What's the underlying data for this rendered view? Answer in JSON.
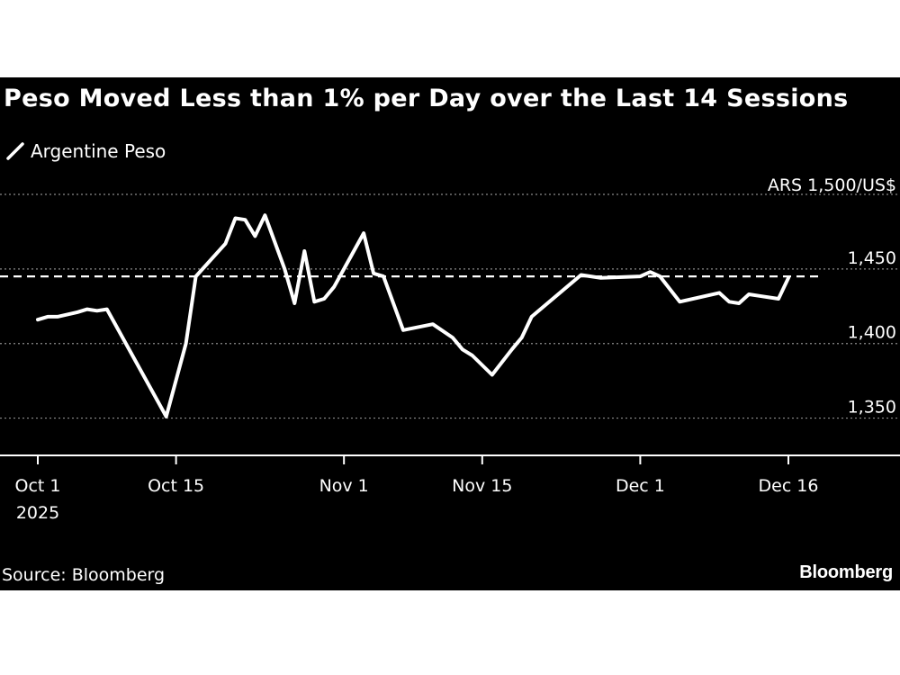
{
  "chart_data": {
    "type": "line",
    "title": "Peso Moved Less than 1% per Day over the Last 14 Sessions",
    "legend": [
      "Argentine Peso"
    ],
    "y_unit_label": "ARS 1,500/US$",
    "ylim": [
      1325,
      1500
    ],
    "y_ticks": [
      {
        "value": 1450,
        "label": "1,450"
      },
      {
        "value": 1400,
        "label": "1,400"
      },
      {
        "value": 1350,
        "label": "1,350"
      }
    ],
    "x_start": "2025-10-01",
    "x_end": "2025-12-16",
    "x_ticks": [
      {
        "day": 0,
        "label": "Oct 1",
        "sublabel": "2025"
      },
      {
        "day": 14,
        "label": "Oct 15",
        "sublabel": ""
      },
      {
        "day": 31,
        "label": "Nov 1",
        "sublabel": ""
      },
      {
        "day": 45,
        "label": "Nov 15",
        "sublabel": ""
      },
      {
        "day": 61,
        "label": "Dec 1",
        "sublabel": ""
      },
      {
        "day": 76,
        "label": "Dec 16",
        "sublabel": ""
      }
    ],
    "reference_line": {
      "value": 1445
    },
    "series": [
      {
        "name": "Argentine Peso",
        "points": [
          [
            0,
            1416
          ],
          [
            1,
            1418
          ],
          [
            2,
            1418
          ],
          [
            4,
            1421
          ],
          [
            5,
            1423
          ],
          [
            6,
            1422
          ],
          [
            7,
            1423
          ],
          [
            13,
            1351
          ],
          [
            15,
            1400
          ],
          [
            16,
            1445
          ],
          [
            19,
            1467
          ],
          [
            20,
            1484
          ],
          [
            21,
            1483
          ],
          [
            22,
            1472
          ],
          [
            23,
            1486
          ],
          [
            25,
            1450
          ],
          [
            26,
            1427
          ],
          [
            27,
            1462
          ],
          [
            28,
            1428
          ],
          [
            29,
            1430
          ],
          [
            30,
            1438
          ],
          [
            33,
            1474
          ],
          [
            34,
            1447
          ],
          [
            35,
            1445
          ],
          [
            37,
            1409
          ],
          [
            40,
            1413
          ],
          [
            42,
            1404
          ],
          [
            43,
            1396
          ],
          [
            44,
            1392
          ],
          [
            46,
            1379
          ],
          [
            48,
            1396
          ],
          [
            49,
            1404
          ],
          [
            50,
            1418
          ],
          [
            55,
            1446
          ],
          [
            56,
            1445
          ],
          [
            57,
            1444
          ],
          [
            61,
            1445
          ],
          [
            62,
            1448
          ],
          [
            63,
            1445
          ],
          [
            65,
            1428
          ],
          [
            69,
            1434
          ],
          [
            70,
            1428
          ],
          [
            71,
            1427
          ],
          [
            72,
            1433
          ],
          [
            73,
            1432
          ],
          [
            75,
            1430
          ],
          [
            76,
            1444
          ]
        ]
      }
    ]
  },
  "source": "Source: Bloomberg",
  "brand": "Bloomberg",
  "colors": {
    "background": "#000000",
    "line": "#ffffff",
    "grid": "#8a8a8a"
  }
}
